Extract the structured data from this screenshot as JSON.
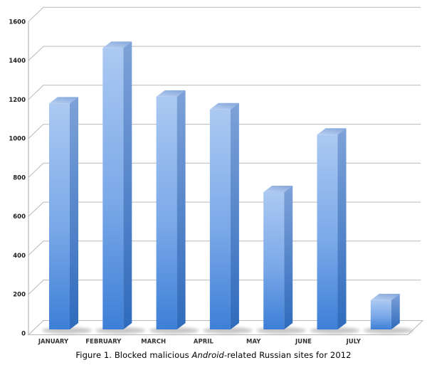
{
  "caption": {
    "prefix": "Figure 1. Blocked malicious ",
    "emphasis": "Android",
    "suffix": "-related Russian sites for 2012"
  },
  "chart_data": {
    "type": "bar",
    "style": "3d-column",
    "categories": [
      "JANUARY",
      "FEBRUARY",
      "MARCH",
      "APRIL",
      "MAY",
      "JUNE",
      "JULY"
    ],
    "values": [
      1160,
      1445,
      1195,
      1130,
      705,
      1000,
      150
    ],
    "series_name": "Blocked malicious Android-related Russian sites",
    "title": "",
    "xlabel": "",
    "ylabel": "",
    "ylim": [
      0,
      1600
    ],
    "ytick_interval": 200,
    "ytick_labels": [
      "0",
      "200",
      "400",
      "600",
      "800",
      "1000",
      "1200",
      "1400",
      "1600"
    ],
    "grid": true,
    "legend": false,
    "colors": {
      "bar_front_top": "#abc9f2",
      "bar_front_mid": "#7aa8e8",
      "bar_front_bottom": "#3d7fd7",
      "bar_top_light": "#b8cff2",
      "bar_top_dark": "#8aabdd",
      "bar_side_top": "#7ea2d8",
      "bar_side_bottom": "#2f6bbd",
      "gridline": "#b9b9b9",
      "axis_line": "#a8a8a8",
      "axis_text": "#1c1c1c",
      "month_text": "#333333",
      "shadow": "#8f8f8f",
      "background": "#ffffff",
      "caption_text": "#000000"
    }
  }
}
